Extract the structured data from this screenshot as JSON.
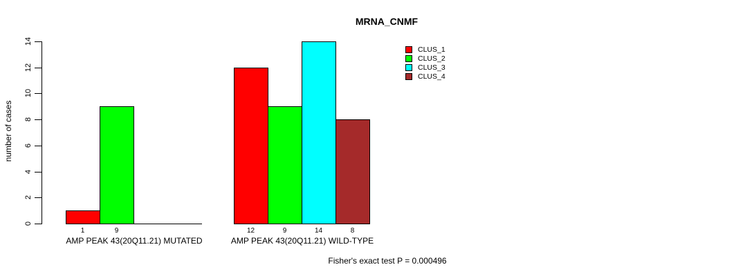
{
  "chart_data": {
    "type": "bar",
    "title": "MRNA_CNMF",
    "ylabel": "number of cases",
    "ylim": [
      0,
      14
    ],
    "yticks": [
      0,
      2,
      4,
      6,
      8,
      10,
      12,
      14
    ],
    "grid": false,
    "legend_position": "top-right",
    "series": [
      {
        "name": "CLUS_1",
        "color": "#ff0000"
      },
      {
        "name": "CLUS_2",
        "color": "#00ff00"
      },
      {
        "name": "CLUS_3",
        "color": "#00ffff"
      },
      {
        "name": "CLUS_4",
        "color": "#a52a2a"
      }
    ],
    "groups": [
      {
        "label": "AMP PEAK 43(20Q11.21) MUTATED",
        "values": [
          1,
          9,
          0,
          0
        ]
      },
      {
        "label": "AMP PEAK 43(20Q11.21) WILD-TYPE",
        "values": [
          12,
          9,
          14,
          8
        ]
      }
    ],
    "bar_value_labels_shown": [
      "1",
      "9",
      "12",
      "9",
      "14",
      "8"
    ],
    "annotation": "Fisher's exact test P = 0.000496"
  }
}
